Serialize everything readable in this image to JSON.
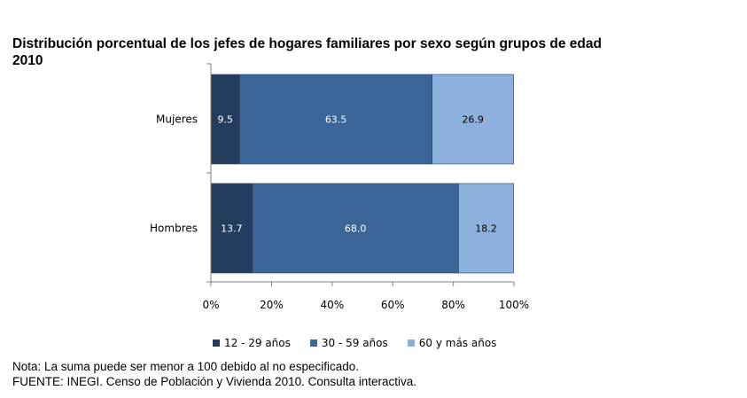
{
  "title_line1": "Distribución porcentual de los jefes de hogares familiares por sexo según grupos de edad",
  "title_line2": "2010",
  "note": "Nota: La suma puede ser menor a 100 debido al no especificado.",
  "source": "FUENTE: INEGI. Censo de Población y Vivienda 2010. Consulta interactiva.",
  "chart_data": {
    "type": "bar",
    "orientation": "horizontal",
    "stacked": true,
    "categories": [
      "Mujeres",
      "Hombres"
    ],
    "series": [
      {
        "name": "12 - 29 años",
        "color": "#243d5e",
        "values": [
          9.5,
          13.7
        ]
      },
      {
        "name": "30 - 59 años",
        "color": "#3c6598",
        "values": [
          63.5,
          68.0
        ]
      },
      {
        "name": "60 y más años",
        "color": "#8eb0dc",
        "values": [
          26.9,
          18.2
        ]
      }
    ],
    "xlim": [
      0,
      100
    ],
    "xticks": [
      "0%",
      "20%",
      "40%",
      "60%",
      "80%",
      "100%"
    ],
    "grid": false,
    "legend_position": "bottom"
  }
}
